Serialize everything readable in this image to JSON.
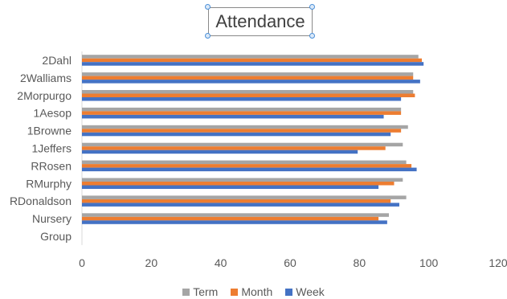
{
  "chart_data": {
    "type": "bar",
    "orientation": "horizontal",
    "title": "Attendance",
    "categories": [
      "2Dahl",
      "2Walliams",
      "2Morpurgo",
      "1Aesop",
      "1Browne",
      "1Jeffers",
      "RRosen",
      "RMurphy",
      "RDonaldson",
      "Nursery",
      "Group"
    ],
    "series": [
      {
        "name": "Term",
        "color": "#a5a5a5",
        "values": [
          97,
          95.5,
          95.5,
          92,
          94,
          92.5,
          93.5,
          92.5,
          93.5,
          88.5,
          null
        ]
      },
      {
        "name": "Month",
        "color": "#ed7d31",
        "values": [
          98,
          95.5,
          96,
          92,
          92,
          87.5,
          95,
          90,
          89,
          85.5,
          null
        ]
      },
      {
        "name": "Week",
        "color": "#4472c4",
        "values": [
          98.5,
          97.5,
          92,
          87,
          89,
          79.5,
          96.5,
          85.5,
          91.5,
          88,
          null
        ]
      }
    ],
    "xlim": [
      0,
      120
    ],
    "xticks": [
      "0",
      "20",
      "40",
      "60",
      "80",
      "100",
      "120"
    ],
    "xlabel": "",
    "ylabel": "",
    "grid": false,
    "legend_position": "bottom"
  }
}
